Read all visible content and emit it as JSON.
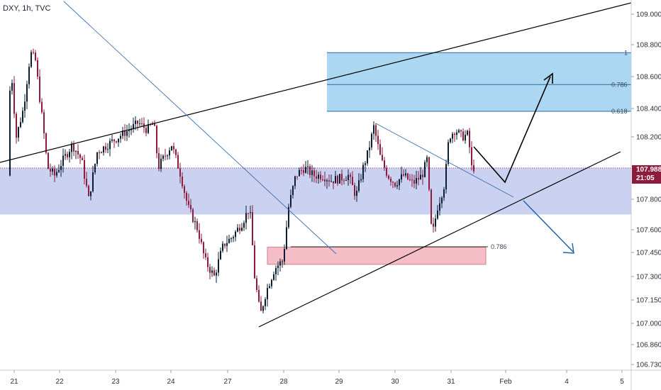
{
  "header": {
    "title": "DXY, 1h, TVC"
  },
  "current_price": {
    "value": "107.988",
    "countdown": "21:05"
  },
  "colors": {
    "up": "#0b1f33",
    "down": "#8e1b3b",
    "resistance_zone": "#6b7ad6",
    "fib_box": "#5ab0e6",
    "demand_box": "#f2a7b3",
    "trend_line": "#000000",
    "forecast_down": "#1f5fa8"
  },
  "chart_data": {
    "type": "candlestick",
    "symbol": "DXY",
    "timeframe": "1h",
    "source": "TVC",
    "x_ticks": [
      "21",
      "22",
      "23",
      "24",
      "27",
      "28",
      "29",
      "30",
      "31",
      "Feb",
      "4",
      "5"
    ],
    "y_ticks": [
      "109.000",
      "108.800",
      "108.600",
      "108.400",
      "108.200",
      "107.800",
      "107.600",
      "107.450",
      "107.300",
      "107.150",
      "107.000",
      "106.860",
      "106.730"
    ],
    "y_tick_values": [
      109.0,
      108.8,
      108.6,
      108.4,
      108.2,
      107.8,
      107.6,
      107.45,
      107.3,
      107.15,
      107.0,
      106.86,
      106.73
    ],
    "ylim": [
      106.73,
      109.0
    ],
    "last_price": 107.988,
    "fib_levels": [
      {
        "label": "1",
        "value": 108.75
      },
      {
        "label": "0.786",
        "value": 108.55
      },
      {
        "label": "0.618",
        "value": 108.38
      }
    ],
    "demand_zone_label": "0.786",
    "resistance_zone": {
      "low": 107.7,
      "high": 108.0
    },
    "demand_zone": {
      "low": 107.38,
      "high": 107.48
    }
  }
}
